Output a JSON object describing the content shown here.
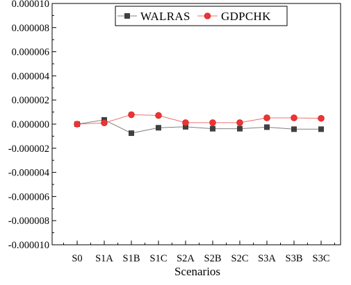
{
  "chart_data": {
    "type": "line",
    "title": "",
    "xlabel": "Scenarios",
    "ylabel": "",
    "categories": [
      "S0",
      "S1A",
      "S1B",
      "S1C",
      "S2A",
      "S2B",
      "S2C",
      "S3A",
      "S3B",
      "S3C"
    ],
    "ylim": [
      -1e-05,
      1e-05
    ],
    "yticks": [
      1e-05,
      8e-06,
      6e-06,
      4e-06,
      2e-06,
      0.0,
      -2e-06,
      -4e-06,
      -6e-06,
      -8e-06,
      -1e-05
    ],
    "ytick_labels": [
      "0.000010",
      "0.000008",
      "0.000006",
      "0.000004",
      "0.000002",
      "0.000000",
      "-0.000002",
      "-0.000004",
      "-0.000006",
      "-0.000008",
      "-0.000010"
    ],
    "grid": false,
    "legend_position": "top-right",
    "series": [
      {
        "name": "WALRAS",
        "color": "#404040",
        "marker": "square",
        "values": [
          0.0,
          3.5e-07,
          -7.5e-07,
          -3e-07,
          -2.2e-07,
          -3.8e-07,
          -3.8e-07,
          -2.5e-07,
          -4.2e-07,
          -4.2e-07
        ]
      },
      {
        "name": "GDPCHK",
        "color": "#ee3333",
        "marker": "circle",
        "values": [
          0.0,
          1e-07,
          7.8e-07,
          7.2e-07,
          1.2e-07,
          1.2e-07,
          1.2e-07,
          5.2e-07,
          5.2e-07,
          4.8e-07
        ]
      }
    ]
  }
}
